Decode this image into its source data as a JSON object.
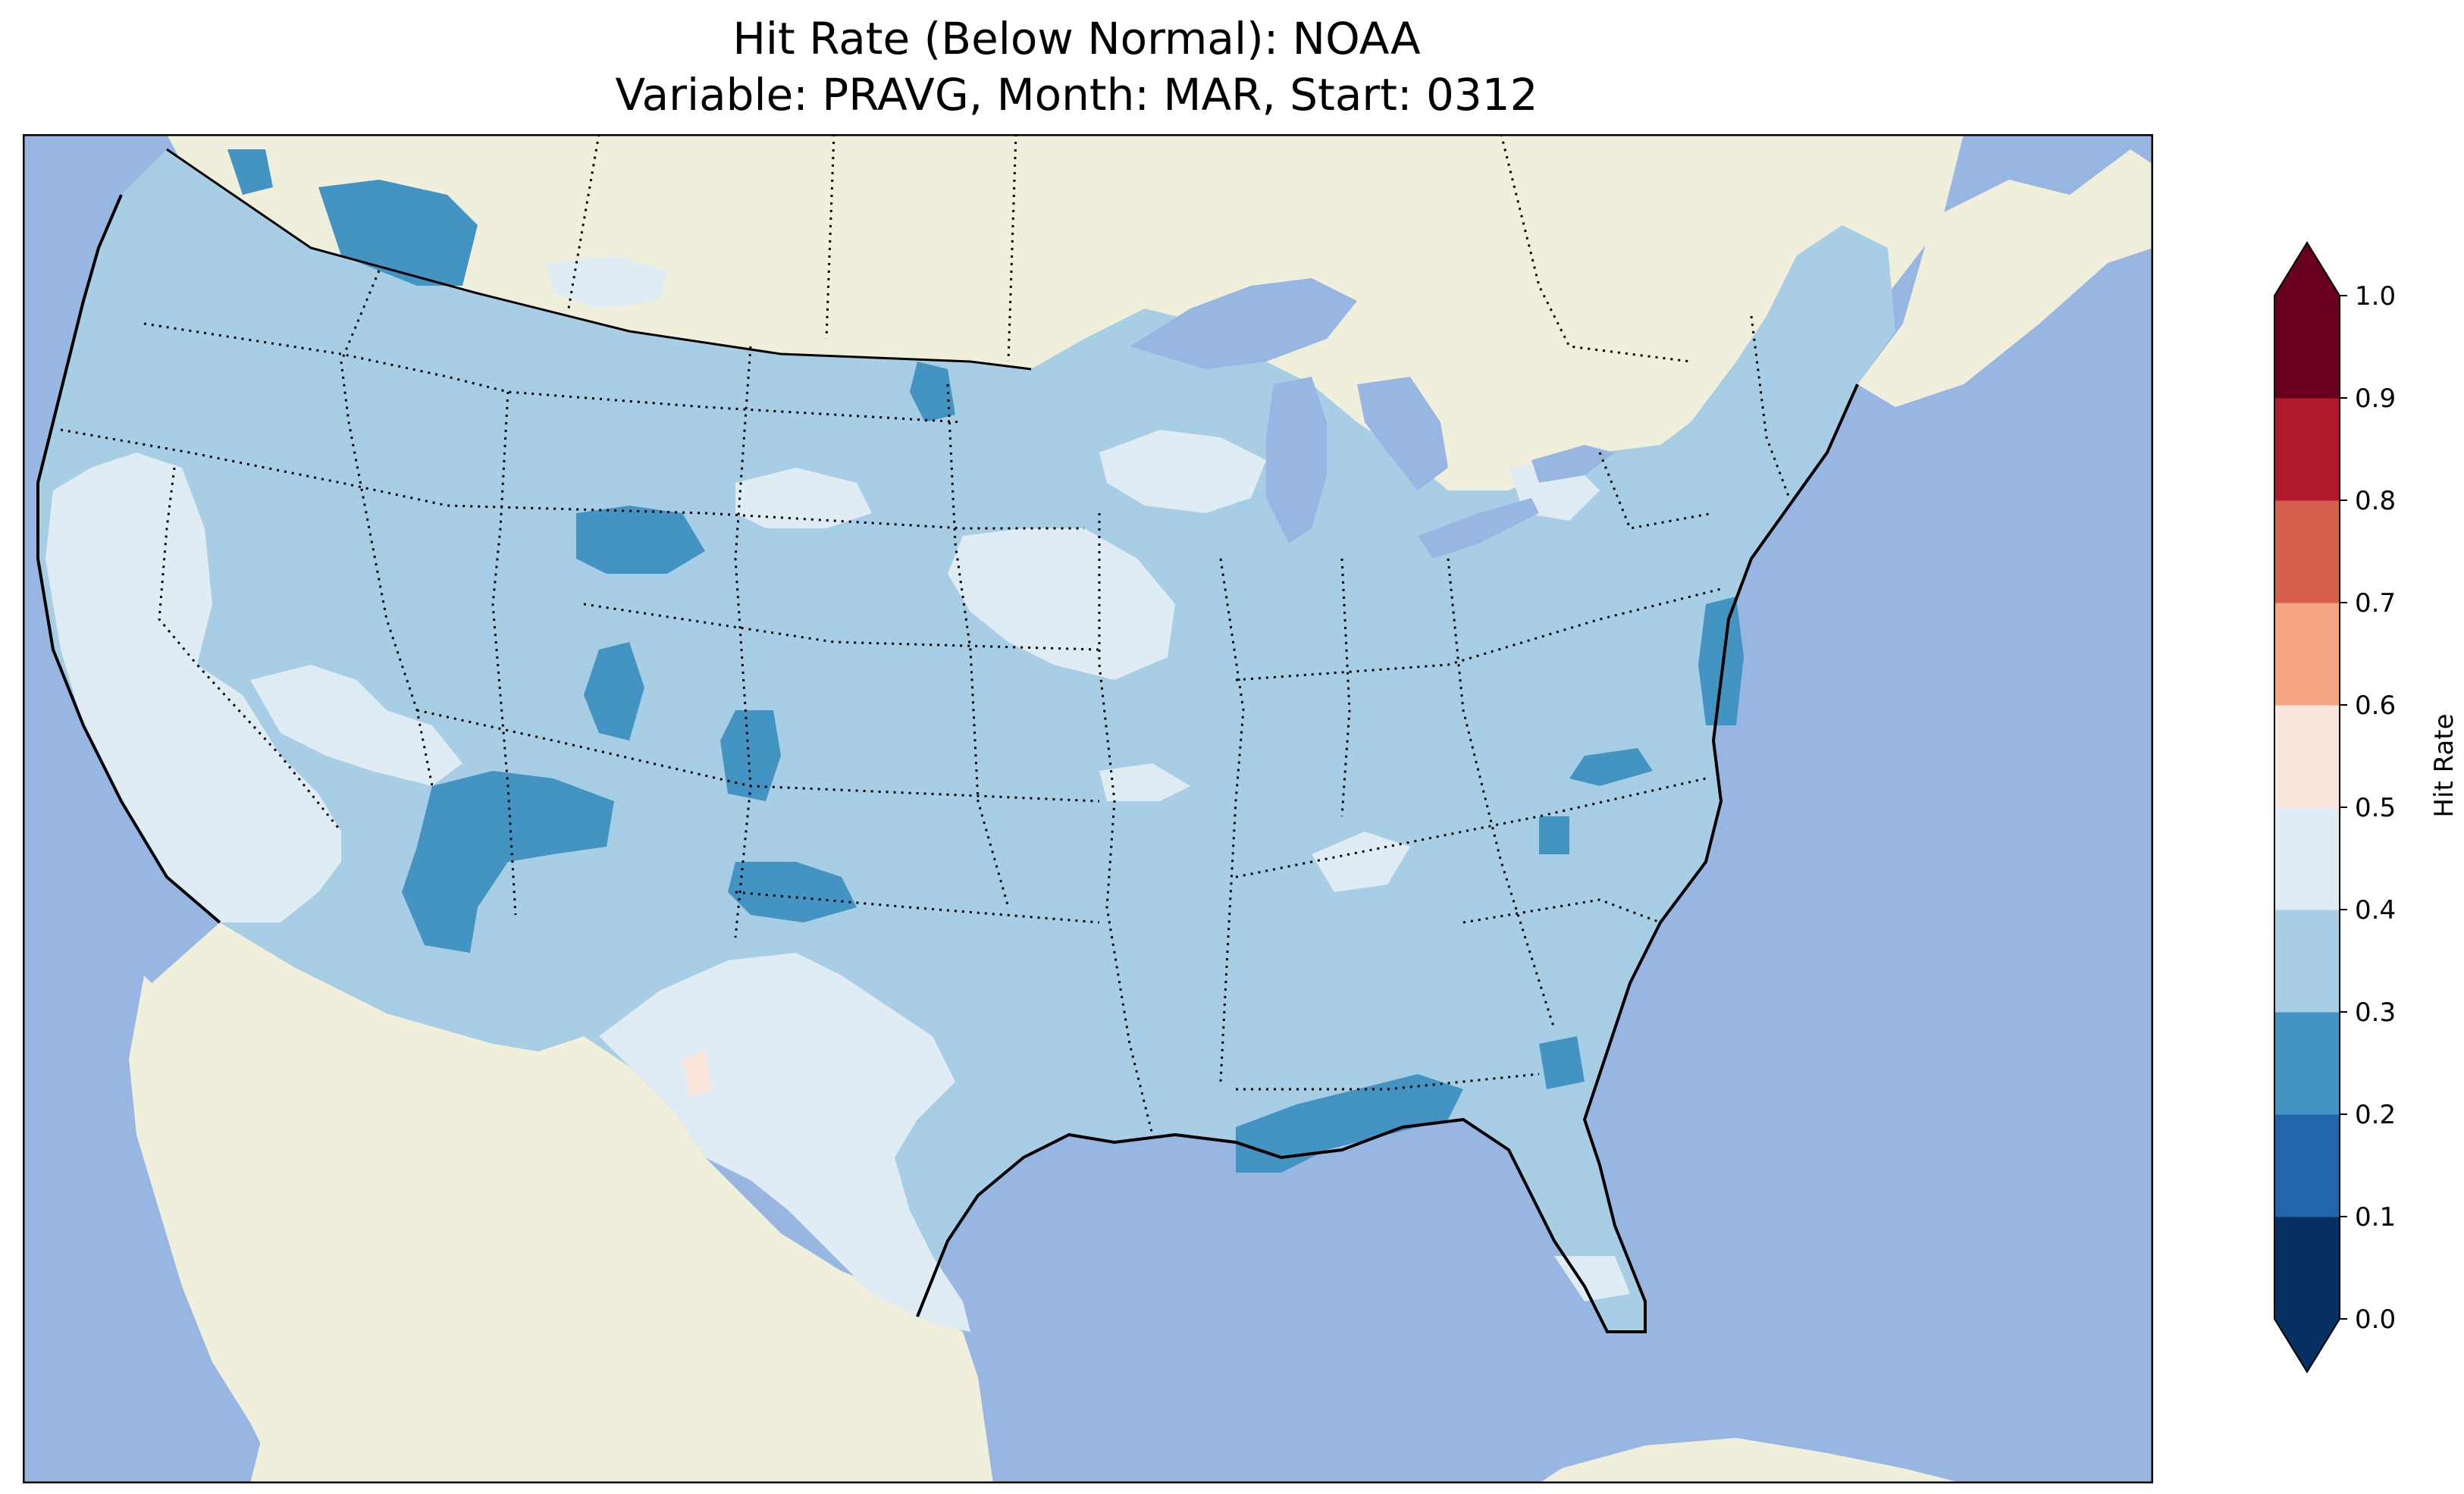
{
  "title": {
    "line1": "Hit Rate (Below Normal): NOAA",
    "line2": "Variable: PRAVG, Month: MAR, Start: 0312"
  },
  "colors": {
    "ocean": "#97b6e1",
    "land": "#efefdb",
    "lake": "#97b6e1"
  },
  "colorbar": {
    "label": "Hit Rate",
    "ticks": [
      "0.0",
      "0.1",
      "0.2",
      "0.3",
      "0.4",
      "0.5",
      "0.6",
      "0.7",
      "0.8",
      "0.9",
      "1.0"
    ],
    "bins": [
      {
        "range": [
          0.0,
          0.1
        ],
        "color": "#053061"
      },
      {
        "range": [
          0.1,
          0.2
        ],
        "color": "#2166ac"
      },
      {
        "range": [
          0.2,
          0.3
        ],
        "color": "#4393c3"
      },
      {
        "range": [
          0.3,
          0.4
        ],
        "color": "#a7cee4"
      },
      {
        "range": [
          0.4,
          0.5
        ],
        "color": "#e0ecf4"
      },
      {
        "range": [
          0.5,
          0.6
        ],
        "color": "#fbe5dc"
      },
      {
        "range": [
          0.6,
          0.7
        ],
        "color": "#f4a582"
      },
      {
        "range": [
          0.7,
          0.8
        ],
        "color": "#d6604d"
      },
      {
        "range": [
          0.8,
          0.9
        ],
        "color": "#b2182b"
      },
      {
        "range": [
          0.9,
          1.0
        ],
        "color": "#67001f"
      }
    ]
  }
}
